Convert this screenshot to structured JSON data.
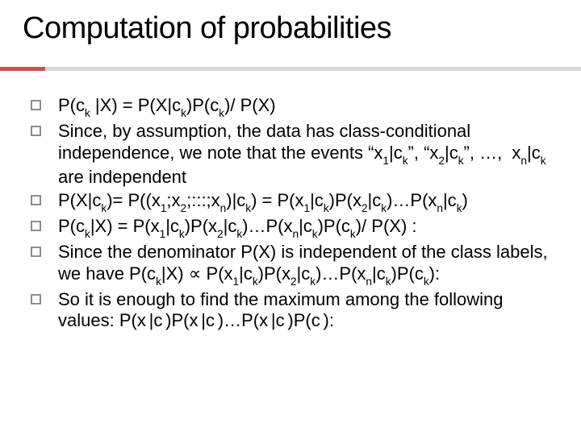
{
  "title": "Computation of probabilities",
  "bullets": [
    {
      "text": "P(ck |X) = P(X|ck)P(ck)/ P(X)"
    },
    {
      "text": "Since, by assumption, the data has class-conditional independence, we note that the events \"x1|ck\", \"x2|ck\", …,  xn|ck are independent"
    },
    {
      "text": "P(X|ck)= P((x1;x2;:::;xn)|ck) = P(x1|ck)P(x2|ck)…P(xn|ck)"
    },
    {
      "text": "P(ck|X) = P(x1|ck)P(x2|ck)…P(xn|ck)P(ck)/ P(X) :"
    },
    {
      "text": "Since the denominator P(X) is independent of the class labels, we have P(ck|X) ∝ P(x1|ck)P(x2|ck)…P(xn|ck)P(ck):"
    },
    {
      "text": "So it is enough to find the maximum among the following values: P(x |c )P(x |c )…P(x |c )P(c ):"
    }
  ],
  "colors": {
    "accent": "#c5574b",
    "underline_gray": "#d9d9d9",
    "bullet_border": "#8c8c8c",
    "text": "#000000",
    "background": "#ffffff"
  }
}
